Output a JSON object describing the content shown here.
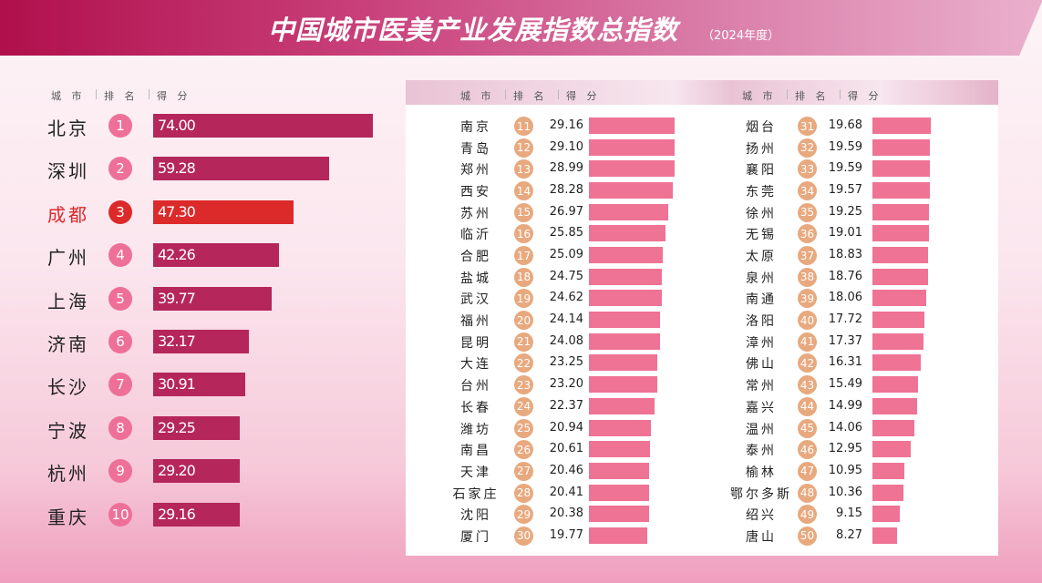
{
  "header": {
    "title": "中国城市医美产业发展指数总指数",
    "subtitle": "（2024年度）"
  },
  "columns": {
    "city": "城 市",
    "rank": "排 名",
    "score": "得 分"
  },
  "colors": {
    "top_bar": "#b5265a",
    "highlight": "#dc2a2a",
    "top_circle": "#ee7099",
    "bar": "#ef7394",
    "circle": "#e8a97f"
  },
  "chart_data": {
    "type": "bar",
    "orientation": "horizontal",
    "highlight_city": "成都",
    "items": [
      {
        "city": "北京",
        "rank": 1,
        "score": "74.00"
      },
      {
        "city": "深圳",
        "rank": 2,
        "score": "59.28"
      },
      {
        "city": "成都",
        "rank": 3,
        "score": "47.30"
      },
      {
        "city": "广州",
        "rank": 4,
        "score": "42.26"
      },
      {
        "city": "上海",
        "rank": 5,
        "score": "39.77"
      },
      {
        "city": "济南",
        "rank": 6,
        "score": "32.17"
      },
      {
        "city": "长沙",
        "rank": 7,
        "score": "30.91"
      },
      {
        "city": "宁波",
        "rank": 8,
        "score": "29.25"
      },
      {
        "city": "杭州",
        "rank": 9,
        "score": "29.20"
      },
      {
        "city": "重庆",
        "rank": 10,
        "score": "29.16"
      },
      {
        "city": "南京",
        "rank": 11,
        "score": "29.16"
      },
      {
        "city": "青岛",
        "rank": 12,
        "score": "29.10"
      },
      {
        "city": "郑州",
        "rank": 13,
        "score": "28.99"
      },
      {
        "city": "西安",
        "rank": 14,
        "score": "28.28"
      },
      {
        "city": "苏州",
        "rank": 15,
        "score": "26.97"
      },
      {
        "city": "临沂",
        "rank": 16,
        "score": "25.85"
      },
      {
        "city": "合肥",
        "rank": 17,
        "score": "25.09"
      },
      {
        "city": "盐城",
        "rank": 18,
        "score": "24.75"
      },
      {
        "city": "武汉",
        "rank": 19,
        "score": "24.62"
      },
      {
        "city": "福州",
        "rank": 20,
        "score": "24.14"
      },
      {
        "city": "昆明",
        "rank": 21,
        "score": "24.08"
      },
      {
        "city": "大连",
        "rank": 22,
        "score": "23.25"
      },
      {
        "city": "台州",
        "rank": 23,
        "score": "23.20"
      },
      {
        "city": "长春",
        "rank": 24,
        "score": "22.37"
      },
      {
        "city": "潍坊",
        "rank": 25,
        "score": "20.94"
      },
      {
        "city": "南昌",
        "rank": 26,
        "score": "20.61"
      },
      {
        "city": "天津",
        "rank": 27,
        "score": "20.46"
      },
      {
        "city": "石家庄",
        "rank": 28,
        "score": "20.41"
      },
      {
        "city": "沈阳",
        "rank": 29,
        "score": "20.38"
      },
      {
        "city": "厦门",
        "rank": 30,
        "score": "19.77"
      },
      {
        "city": "烟台",
        "rank": 31,
        "score": "19.68"
      },
      {
        "city": "扬州",
        "rank": 32,
        "score": "19.59"
      },
      {
        "city": "襄阳",
        "rank": 33,
        "score": "19.59"
      },
      {
        "city": "东莞",
        "rank": 34,
        "score": "19.57"
      },
      {
        "city": "徐州",
        "rank": 35,
        "score": "19.25"
      },
      {
        "city": "无锡",
        "rank": 36,
        "score": "19.01"
      },
      {
        "city": "太原",
        "rank": 37,
        "score": "18.83"
      },
      {
        "city": "泉州",
        "rank": 38,
        "score": "18.76"
      },
      {
        "city": "南通",
        "rank": 39,
        "score": "18.06"
      },
      {
        "city": "洛阳",
        "rank": 40,
        "score": "17.72"
      },
      {
        "city": "漳州",
        "rank": 41,
        "score": "17.37"
      },
      {
        "city": "佛山",
        "rank": 42,
        "score": "16.31"
      },
      {
        "city": "常州",
        "rank": 43,
        "score": "15.49"
      },
      {
        "city": "嘉兴",
        "rank": 44,
        "score": "14.99"
      },
      {
        "city": "温州",
        "rank": 45,
        "score": "14.06"
      },
      {
        "city": "泰州",
        "rank": 46,
        "score": "12.95"
      },
      {
        "city": "榆林",
        "rank": 47,
        "score": "10.95"
      },
      {
        "city": "鄂尔多斯",
        "rank": 48,
        "score": "10.36"
      },
      {
        "city": "绍兴",
        "rank": 49,
        "score": "9.15"
      },
      {
        "city": "唐山",
        "rank": 50,
        "score": "8.27"
      }
    ]
  }
}
